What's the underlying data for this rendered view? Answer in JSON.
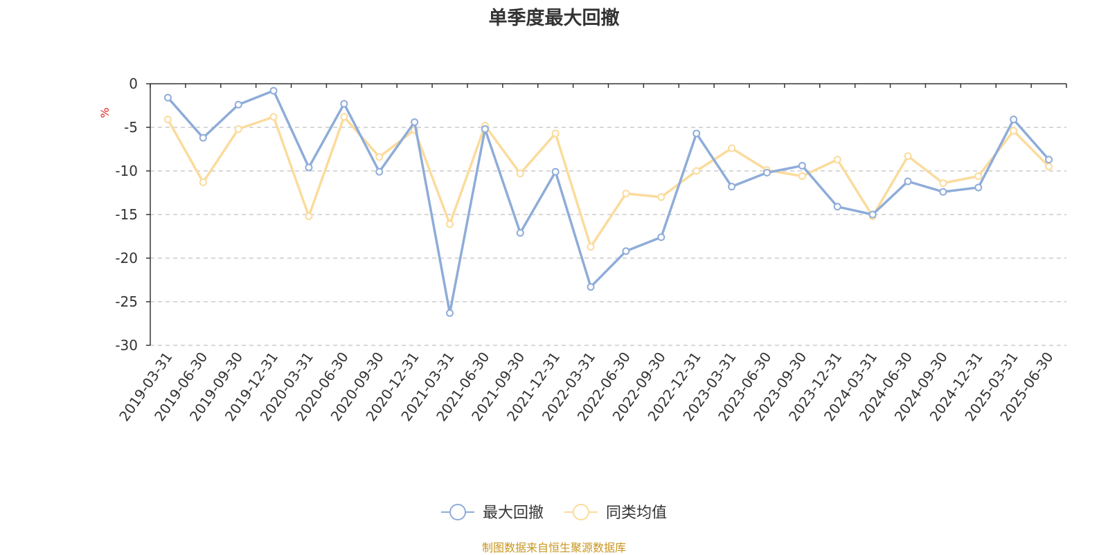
{
  "chart_data": {
    "type": "line",
    "title": "单季度最大回撤",
    "ylabel": "%",
    "ylim": [
      -30,
      0
    ],
    "yticks": [
      0,
      -5,
      -10,
      -15,
      -20,
      -25,
      -30
    ],
    "grid": true,
    "legend_position": "bottom",
    "categories": [
      "2019-03-31",
      "2019-06-30",
      "2019-09-30",
      "2019-12-31",
      "2020-03-31",
      "2020-06-30",
      "2020-09-30",
      "2020-12-31",
      "2021-03-31",
      "2021-06-30",
      "2021-09-30",
      "2021-12-31",
      "2022-03-31",
      "2022-06-30",
      "2022-09-30",
      "2022-12-31",
      "2023-03-31",
      "2023-06-30",
      "2023-09-30",
      "2023-12-31",
      "2024-03-31",
      "2024-06-30",
      "2024-09-30",
      "2024-12-31",
      "2025-03-31",
      "2025-06-30"
    ],
    "series": [
      {
        "name": "最大回撤",
        "color": "#8eacd8",
        "values": [
          -1.6,
          -6.2,
          -2.4,
          -0.8,
          -9.6,
          -2.3,
          -10.1,
          -4.4,
          -26.3,
          -5.2,
          -17.1,
          -10.1,
          -23.3,
          -19.2,
          -17.6,
          -5.7,
          -11.8,
          -10.2,
          -9.4,
          -14.1,
          -15.0,
          -11.2,
          -12.4,
          -11.9,
          -4.1,
          -8.7
        ]
      },
      {
        "name": "同类均值",
        "color": "#fbdb9c",
        "values": [
          -4.1,
          -11.3,
          -5.2,
          -3.8,
          -15.2,
          -3.8,
          -8.4,
          -5.3,
          -16.1,
          -4.8,
          -10.3,
          -5.7,
          -18.7,
          -12.6,
          -13.0,
          -10.0,
          -7.4,
          -9.9,
          -10.6,
          -8.7,
          -15.2,
          -8.3,
          -11.4,
          -10.6,
          -5.4,
          -9.5
        ]
      }
    ]
  },
  "source_note": "制图数据来自恒生聚源数据库"
}
